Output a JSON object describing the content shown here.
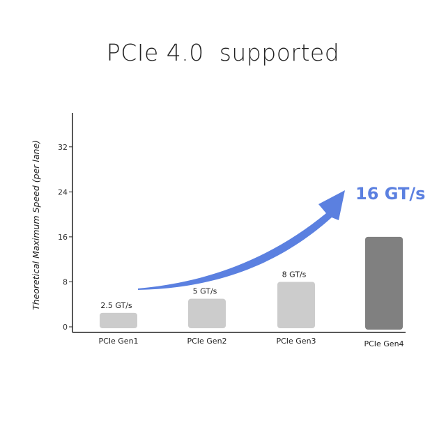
{
  "title": "PCIe 4.0  supported",
  "chart_data": {
    "type": "bar",
    "title": "PCIe 4.0  supported",
    "xlabel": "",
    "ylabel": "Theoretical Maximum Speed (per lane)",
    "ylim": [
      0,
      38
    ],
    "yticks": [
      0,
      8,
      16,
      24,
      32
    ],
    "categories": [
      "PCIe Gen1",
      "PCIe Gen2",
      "PCIe Gen3",
      "PCIe Gen4"
    ],
    "values": [
      2.5,
      5,
      8,
      16
    ],
    "data_labels": [
      "2.5 GT/s",
      "5 GT/s",
      "8 GT/s",
      ""
    ],
    "bar_colors": [
      "#cccccc",
      "#cccccc",
      "#cccccc",
      "#808080"
    ],
    "annotation": {
      "text": "16 GT/s",
      "color": "#5b80e0",
      "arrow_color": "#5b80e0"
    },
    "grid": false
  }
}
